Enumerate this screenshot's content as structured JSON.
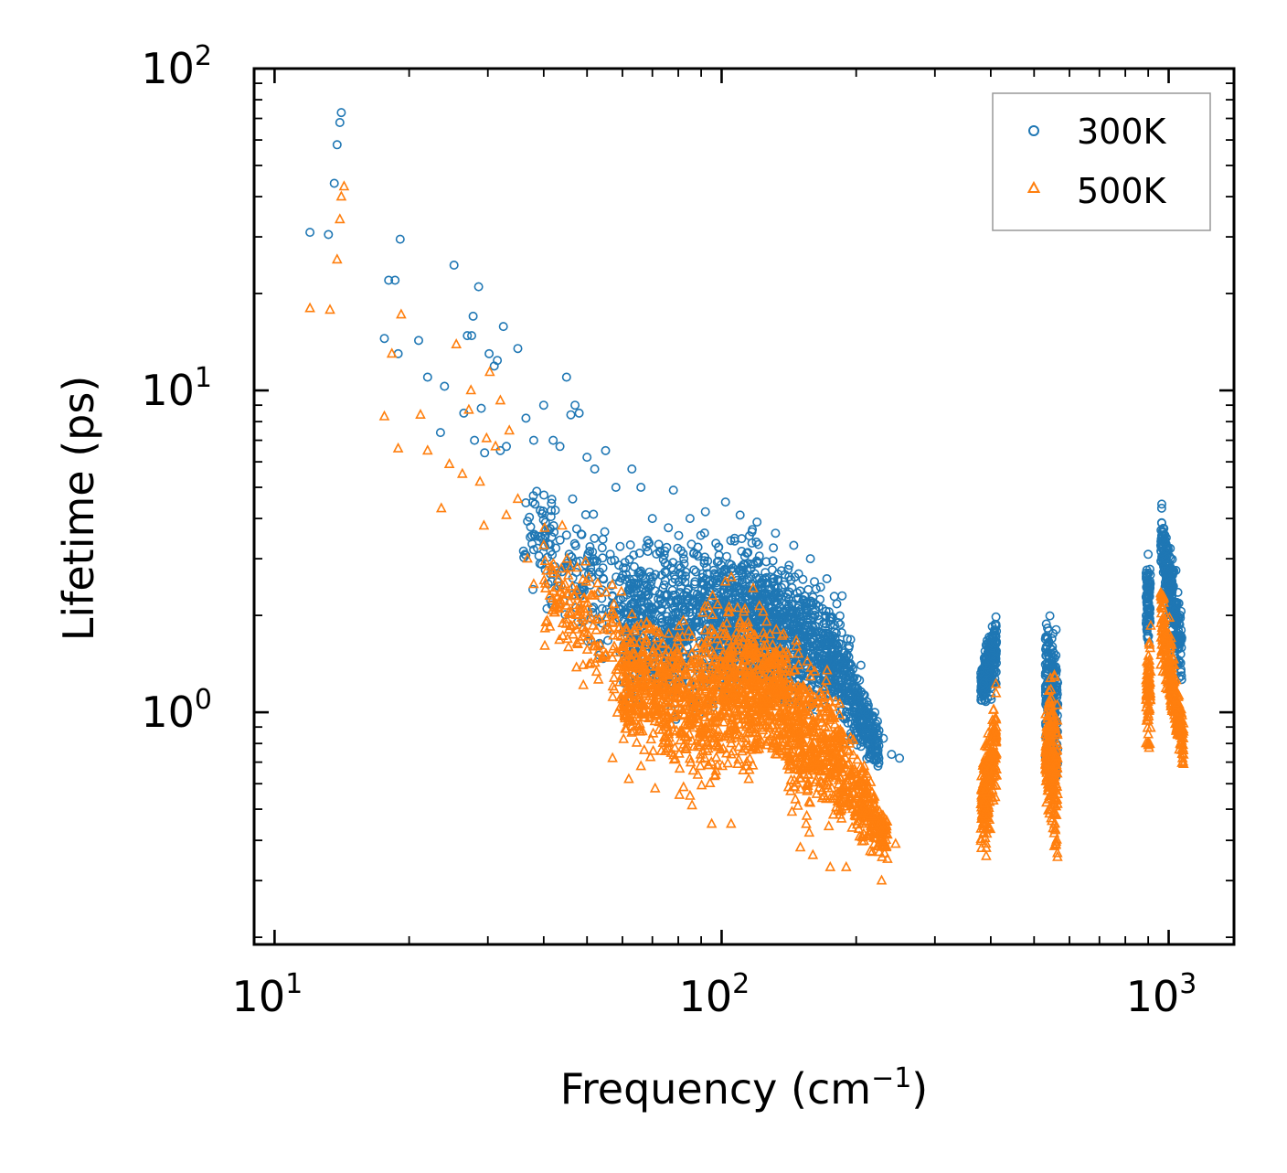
{
  "chart_data": {
    "type": "scatter",
    "title": "",
    "xlabel": "Frequency (cm",
    "xlabel_sup": "−1",
    "xlabel_end": ")",
    "ylabel": "Lifetime (ps)",
    "xscale": "log",
    "yscale": "log",
    "xlim": [
      9.0,
      1400
    ],
    "ylim": [
      0.19,
      100
    ],
    "x_ticks": [
      {
        "base": "10",
        "exp": "1",
        "value": 10
      },
      {
        "base": "10",
        "exp": "2",
        "value": 100
      },
      {
        "base": "10",
        "exp": "3",
        "value": 1000
      }
    ],
    "y_ticks": [
      {
        "base": "10",
        "exp": "0",
        "value": 1
      },
      {
        "base": "10",
        "exp": "1",
        "value": 10
      },
      {
        "base": "10",
        "exp": "2",
        "value": 100
      }
    ],
    "legend_position": "top-right",
    "series": [
      {
        "name": "300K",
        "marker": "circle",
        "color": "#1f77b4",
        "points": [
          [
            12.0,
            31.0
          ],
          [
            13.2,
            30.5
          ],
          [
            13.6,
            44.0
          ],
          [
            13.8,
            58.0
          ],
          [
            14.0,
            68.0
          ],
          [
            14.1,
            73.0
          ],
          [
            17.6,
            14.5
          ],
          [
            18.0,
            22.0
          ],
          [
            18.6,
            22.0
          ],
          [
            18.9,
            13.0
          ],
          [
            19.1,
            29.5
          ],
          [
            21.0,
            14.3
          ],
          [
            22.0,
            11.0
          ],
          [
            23.5,
            7.4
          ],
          [
            24.0,
            10.3
          ],
          [
            25.2,
            24.5
          ],
          [
            26.5,
            8.5
          ],
          [
            27.0,
            14.8
          ],
          [
            27.6,
            14.8
          ],
          [
            27.8,
            17.0
          ],
          [
            28.0,
            7.0
          ],
          [
            28.6,
            21.0
          ],
          [
            29.0,
            8.8
          ],
          [
            29.5,
            6.4
          ],
          [
            30.2,
            13.0
          ],
          [
            31.0,
            11.9
          ],
          [
            31.5,
            12.4
          ],
          [
            32.0,
            6.5
          ],
          [
            32.5,
            15.8
          ],
          [
            33.0,
            6.7
          ],
          [
            35.0,
            13.5
          ],
          [
            36.5,
            8.2
          ],
          [
            38.0,
            7.0
          ],
          [
            40.0,
            9.0
          ],
          [
            42.0,
            7.0
          ],
          [
            43.5,
            6.7
          ],
          [
            45.0,
            11.0
          ],
          [
            46.0,
            8.4
          ],
          [
            47.0,
            9.0
          ],
          [
            48.0,
            8.5
          ],
          [
            50.0,
            6.2
          ],
          [
            52.0,
            5.7
          ],
          [
            55.0,
            6.5
          ],
          [
            58.0,
            5.0
          ],
          [
            63.0,
            5.7
          ],
          [
            66.0,
            5.0
          ],
          [
            70.0,
            4.0
          ],
          [
            78.0,
            4.9
          ],
          [
            85.0,
            4.0
          ],
          [
            92.0,
            4.2
          ],
          [
            102.0,
            4.5
          ],
          [
            110.0,
            4.1
          ],
          [
            120.0,
            3.9
          ],
          [
            132.0,
            3.6
          ],
          [
            145.0,
            3.3
          ],
          [
            158.0,
            3.0
          ],
          [
            172.0,
            2.6
          ],
          [
            186.0,
            2.3
          ],
          [
            205.0,
            1.4
          ],
          [
            222.0,
            0.9
          ],
          [
            230.0,
            0.83
          ],
          [
            240.0,
            0.74
          ],
          [
            250.0,
            0.72
          ]
        ],
        "clusters": [
          {
            "xmin": 36,
            "xmax": 60,
            "ymin_start": 2.3,
            "ymax_start": 6.0,
            "ymin_end": 1.0,
            "ymax_end": 4.5,
            "n": 180
          },
          {
            "xmin": 60,
            "xmax": 100,
            "ymin_start": 0.85,
            "ymax_start": 4.0,
            "ymin_end": 0.85,
            "ymax_end": 4.4,
            "n": 650
          },
          {
            "xmin": 100,
            "xmax": 135,
            "ymin_start": 0.85,
            "ymax_start": 4.4,
            "ymin_end": 1.0,
            "ymax_end": 3.8,
            "n": 560
          },
          {
            "xmin": 135,
            "xmax": 180,
            "ymin_start": 0.9,
            "ymax_start": 3.6,
            "ymin_end": 0.9,
            "ymax_end": 2.5,
            "n": 420
          },
          {
            "xmin": 180,
            "xmax": 225,
            "ymin_start": 0.75,
            "ymax_start": 2.5,
            "ymin_end": 0.62,
            "ymax_end": 0.95,
            "n": 300
          },
          {
            "xmin": 380,
            "xmax": 412,
            "ymin_start": 0.95,
            "ymax_start": 1.5,
            "ymin_end": 1.1,
            "ymax_end": 2.4,
            "n": 240
          },
          {
            "xmin": 530,
            "xmax": 565,
            "ymin_start": 0.55,
            "ymax_start": 2.5,
            "ymin_end": 0.5,
            "ymax_end": 2.0,
            "n": 240
          },
          {
            "xmin": 890,
            "xmax": 910,
            "ymin_start": 1.4,
            "ymax_start": 3.3,
            "ymin_end": 1.5,
            "ymax_end": 3.3,
            "n": 90
          },
          {
            "xmin": 960,
            "xmax": 1070,
            "ymin_start": 2.5,
            "ymax_start": 4.8,
            "ymin_end": 1.0,
            "ymax_end": 2.4,
            "n": 280
          }
        ]
      },
      {
        "name": "500K",
        "marker": "triangle",
        "color": "#ff7f0e",
        "points": [
          [
            12.0,
            18.0
          ],
          [
            13.3,
            17.8
          ],
          [
            13.8,
            25.5
          ],
          [
            14.0,
            34.0
          ],
          [
            14.1,
            40.0
          ],
          [
            14.3,
            43.0
          ],
          [
            17.6,
            8.3
          ],
          [
            18.3,
            13.0
          ],
          [
            18.9,
            6.6
          ],
          [
            19.2,
            17.2
          ],
          [
            21.2,
            8.4
          ],
          [
            22.0,
            6.5
          ],
          [
            23.6,
            4.3
          ],
          [
            24.6,
            5.9
          ],
          [
            25.5,
            13.9
          ],
          [
            26.3,
            5.5
          ],
          [
            27.2,
            8.7
          ],
          [
            27.5,
            10.0
          ],
          [
            28.8,
            5.2
          ],
          [
            29.4,
            3.8
          ],
          [
            29.8,
            7.1
          ],
          [
            30.3,
            11.4
          ],
          [
            31.2,
            6.7
          ],
          [
            32.0,
            9.3
          ],
          [
            33.0,
            4.1
          ],
          [
            33.5,
            7.5
          ],
          [
            35.0,
            4.6
          ],
          [
            36.8,
            3.0
          ],
          [
            38.0,
            2.5
          ],
          [
            40.0,
            3.3
          ],
          [
            42.0,
            2.7
          ],
          [
            44.0,
            3.8
          ],
          [
            47.0,
            2.3
          ],
          [
            49.0,
            1.4
          ],
          [
            52.0,
            1.6
          ],
          [
            57.0,
            0.72
          ],
          [
            62.0,
            0.62
          ],
          [
            66.0,
            0.68
          ],
          [
            71.0,
            0.58
          ],
          [
            85.0,
            0.55
          ],
          [
            95.0,
            0.45
          ],
          [
            105.0,
            0.45
          ],
          [
            115.0,
            0.62
          ],
          [
            150.0,
            0.38
          ],
          [
            160.0,
            0.36
          ],
          [
            175.0,
            0.33
          ],
          [
            190.0,
            0.33
          ],
          [
            215.0,
            0.37
          ],
          [
            228.0,
            0.3
          ],
          [
            235.0,
            0.35
          ],
          [
            245.0,
            0.39
          ]
        ],
        "clusters": [
          {
            "xmin": 40,
            "xmax": 60,
            "ymin_start": 1.5,
            "ymax_start": 4.0,
            "ymin_end": 0.8,
            "ymax_end": 3.0,
            "n": 160
          },
          {
            "xmin": 60,
            "xmax": 100,
            "ymin_start": 0.7,
            "ymax_start": 2.2,
            "ymin_end": 0.42,
            "ymax_end": 2.6,
            "n": 650
          },
          {
            "xmin": 100,
            "xmax": 140,
            "ymin_start": 0.55,
            "ymax_start": 2.8,
            "ymin_end": 0.6,
            "ymax_end": 2.2,
            "n": 560
          },
          {
            "xmin": 140,
            "xmax": 185,
            "ymin_start": 0.4,
            "ymax_start": 2.0,
            "ymin_end": 0.38,
            "ymax_end": 1.3,
            "n": 420
          },
          {
            "xmin": 185,
            "xmax": 235,
            "ymin_start": 0.4,
            "ymax_start": 1.1,
            "ymin_end": 0.32,
            "ymax_end": 0.5,
            "n": 260
          },
          {
            "xmin": 380,
            "xmax": 412,
            "ymin_start": 0.3,
            "ymax_start": 0.8,
            "ymin_end": 0.45,
            "ymax_end": 1.45,
            "n": 230
          },
          {
            "xmin": 530,
            "xmax": 565,
            "ymin_start": 0.5,
            "ymax_start": 1.2,
            "ymin_end": 0.24,
            "ymax_end": 1.7,
            "n": 230
          },
          {
            "xmin": 890,
            "xmax": 912,
            "ymin_start": 0.68,
            "ymax_start": 1.6,
            "ymin_end": 0.7,
            "ymax_end": 2.6,
            "n": 80
          },
          {
            "xmin": 960,
            "xmax": 1080,
            "ymin_start": 1.2,
            "ymax_start": 3.2,
            "ymin_end": 0.6,
            "ymax_end": 1.0,
            "n": 280
          }
        ]
      }
    ]
  }
}
